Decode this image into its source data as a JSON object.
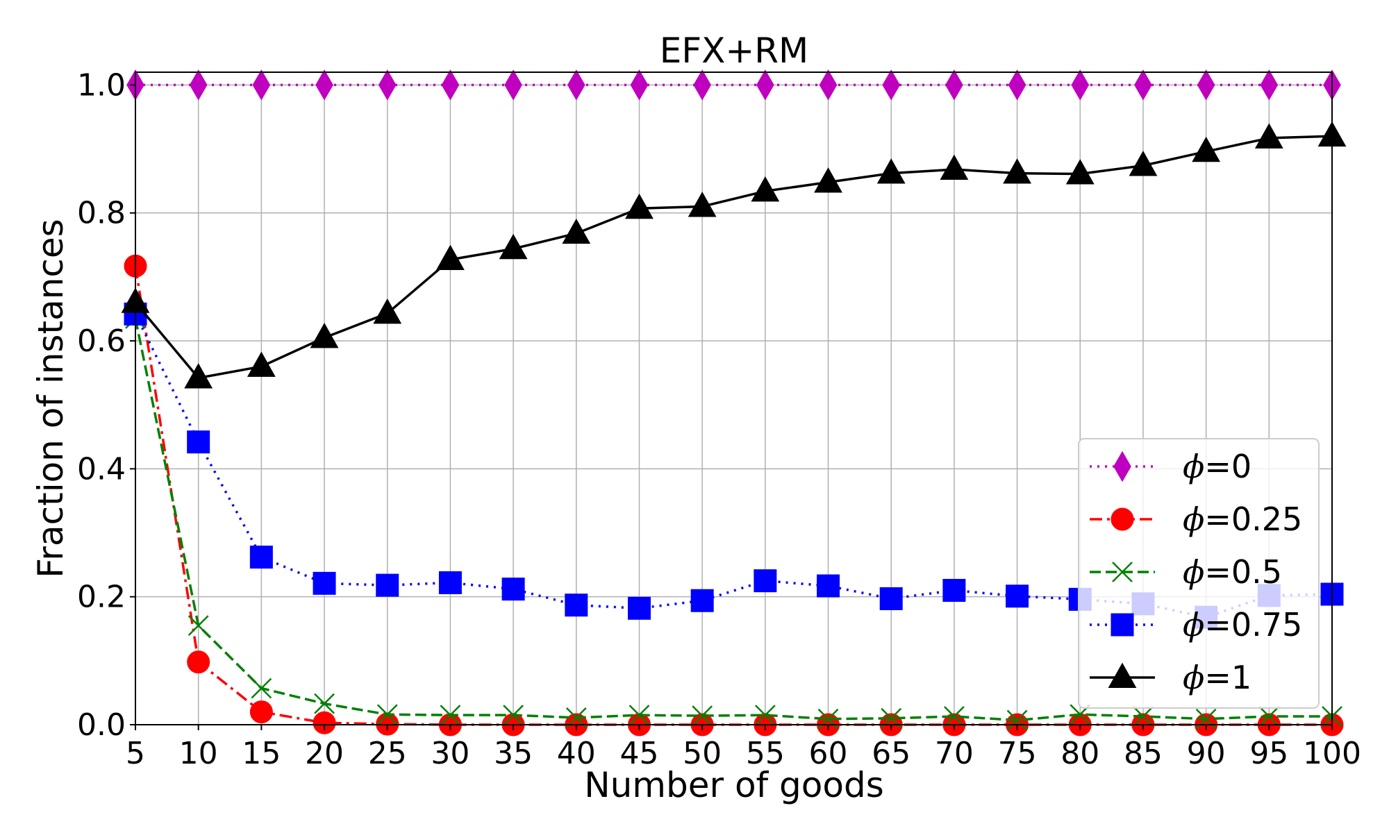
{
  "chart_data": {
    "type": "line",
    "title": "EFX+RM",
    "xlabel": "Number of goods",
    "ylabel": "Fraction of instances",
    "xlim": [
      5,
      100
    ],
    "ylim": [
      0,
      1.02
    ],
    "xticks": [
      5,
      10,
      15,
      20,
      25,
      30,
      35,
      40,
      45,
      50,
      55,
      60,
      65,
      70,
      75,
      80,
      85,
      90,
      95,
      100
    ],
    "yticks": [
      0.0,
      0.2,
      0.4,
      0.6,
      0.8,
      1.0
    ],
    "ytick_labels": [
      "0.0",
      "0.2",
      "0.4",
      "0.6",
      "0.8",
      "1.0"
    ],
    "grid": true,
    "legend_position": "bottom-right",
    "x": [
      5,
      10,
      15,
      20,
      25,
      30,
      35,
      40,
      45,
      50,
      55,
      60,
      65,
      70,
      75,
      80,
      85,
      90,
      95,
      100
    ],
    "series": [
      {
        "name": "ϕ=0",
        "phi": "ϕ",
        "rest": "=0",
        "color": "#bf00bf",
        "marker": "diamond",
        "linestyle": "dotted",
        "values": [
          1.0,
          1.0,
          1.0,
          1.0,
          1.0,
          1.0,
          1.0,
          1.0,
          1.0,
          1.0,
          1.0,
          1.0,
          1.0,
          1.0,
          1.0,
          1.0,
          1.0,
          1.0,
          1.0,
          1.0
        ]
      },
      {
        "name": "ϕ=0.25",
        "phi": "ϕ",
        "rest": "=0.25",
        "color": "#ff0000",
        "marker": "circle",
        "linestyle": "dashdot",
        "values": [
          0.717,
          0.098,
          0.02,
          0.003,
          0.001,
          0.0,
          0.0,
          0.0,
          0.0,
          0.0,
          0.0,
          0.0,
          0.0,
          0.0,
          0.0,
          0.0,
          0.0,
          0.0,
          0.0,
          0.0
        ]
      },
      {
        "name": "ϕ=0.5",
        "phi": "ϕ",
        "rest": "=0.5",
        "color": "#008000",
        "marker": "x",
        "linestyle": "dashed",
        "values": [
          0.635,
          0.155,
          0.057,
          0.033,
          0.016,
          0.015,
          0.015,
          0.011,
          0.015,
          0.014,
          0.015,
          0.009,
          0.01,
          0.013,
          0.007,
          0.016,
          0.013,
          0.009,
          0.013,
          0.013
        ]
      },
      {
        "name": "ϕ=0.75",
        "phi": "ϕ",
        "rest": "=0.75",
        "color": "#0000ff",
        "marker": "square",
        "linestyle": "dotted",
        "values": [
          0.642,
          0.442,
          0.262,
          0.221,
          0.218,
          0.222,
          0.212,
          0.187,
          0.182,
          0.194,
          0.225,
          0.217,
          0.197,
          0.21,
          0.201,
          0.196,
          0.189,
          0.168,
          0.202,
          0.204
        ]
      },
      {
        "name": "ϕ=1",
        "phi": "ϕ",
        "rest": "=1",
        "color": "#000000",
        "marker": "triangle",
        "linestyle": "solid",
        "values": [
          0.66,
          0.542,
          0.56,
          0.605,
          0.643,
          0.727,
          0.744,
          0.768,
          0.807,
          0.81,
          0.834,
          0.848,
          0.862,
          0.868,
          0.862,
          0.861,
          0.874,
          0.896,
          0.917,
          0.92
        ]
      }
    ]
  }
}
